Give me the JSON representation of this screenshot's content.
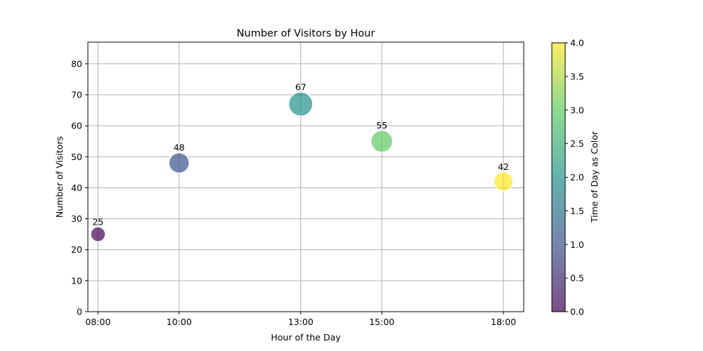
{
  "chart_data": {
    "type": "scatter",
    "title": "Number of Visitors by Hour",
    "xlabel": "Hour of the Day",
    "ylabel": "Number of Visitors",
    "x_hours": [
      8,
      10,
      13,
      15,
      18
    ],
    "x_tick_labels": [
      "08:00",
      "10:00",
      "13:00",
      "15:00",
      "18:00"
    ],
    "values": [
      25,
      48,
      67,
      55,
      42
    ],
    "color_values": [
      0,
      1,
      2,
      3,
      4
    ],
    "data_labels": [
      "25",
      "48",
      "67",
      "55",
      "42"
    ],
    "xlim": [
      7.75,
      18.5
    ],
    "ylim": [
      0,
      87
    ],
    "y_ticks": [
      0,
      10,
      20,
      30,
      40,
      50,
      60,
      70,
      80
    ],
    "y_tick_labels": [
      "0",
      "10",
      "20",
      "30",
      "40",
      "50",
      "60",
      "70",
      "80"
    ],
    "grid": true,
    "colorbar": {
      "label": "Time of Day as Color",
      "range": [
        0,
        4
      ],
      "ticks": [
        0,
        0.5,
        1,
        1.5,
        2,
        2.5,
        3,
        3.5,
        4
      ],
      "tick_labels": [
        "0.0",
        "0.5",
        "1.0",
        "1.5",
        "2.0",
        "2.5",
        "3.0",
        "3.5",
        "4.0"
      ],
      "colormap": [
        "#440154",
        "#3b528b",
        "#21918c",
        "#5ec962",
        "#fde725"
      ]
    },
    "marker_alpha": 0.7
  }
}
